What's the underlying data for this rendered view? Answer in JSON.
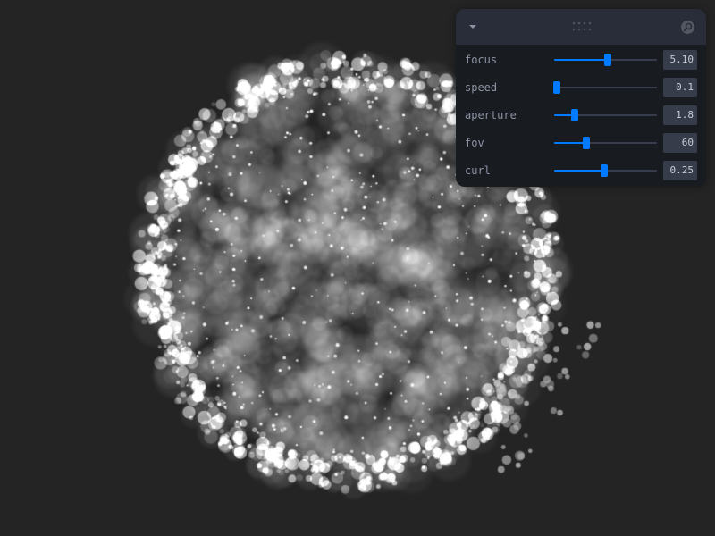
{
  "scene": {
    "background": "#242424",
    "particle_color": "#ffffff"
  },
  "panel": {
    "collapse_icon": "chevron-down-icon",
    "drag_icon": "drag-dots-icon",
    "search_icon": "search-icon",
    "accent_color": "#007bff",
    "controls": [
      {
        "label": "focus",
        "value": "5.10",
        "level": 0.52
      },
      {
        "label": "speed",
        "value": "0.1",
        "level": 0.03
      },
      {
        "label": "aperture",
        "value": "1.8",
        "level": 0.2
      },
      {
        "label": "fov",
        "value": "60",
        "level": 0.31
      },
      {
        "label": "curl",
        "value": "0.25",
        "level": 0.49
      }
    ]
  }
}
